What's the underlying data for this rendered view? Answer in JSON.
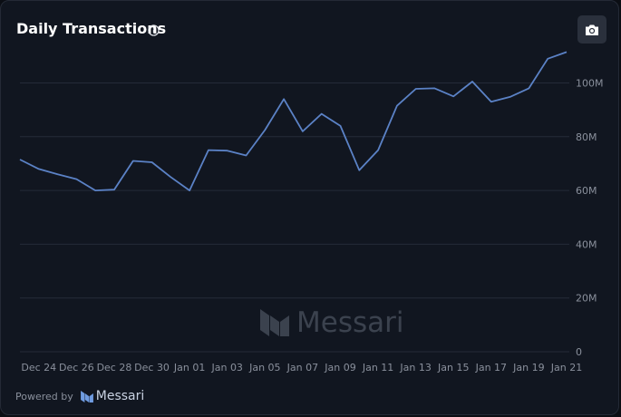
{
  "header": {
    "title": "Daily Transactions",
    "info_icon": "info-circle-icon",
    "camera_icon": "camera-icon"
  },
  "watermark": {
    "text": "Messari"
  },
  "footer": {
    "powered_by": "Powered by",
    "brand": "Messari"
  },
  "colors": {
    "line": "#5b82c6",
    "grid": "#252b38",
    "tick": "#8a909c"
  },
  "chart_data": {
    "type": "line",
    "title": "Daily Transactions",
    "xlabel": "",
    "ylabel": "",
    "x": [
      "Dec 23",
      "Dec 24",
      "Dec 25",
      "Dec 26",
      "Dec 27",
      "Dec 28",
      "Dec 29",
      "Dec 30",
      "Dec 31",
      "Jan 01",
      "Jan 02",
      "Jan 03",
      "Jan 04",
      "Jan 05",
      "Jan 06",
      "Jan 07",
      "Jan 08",
      "Jan 09",
      "Jan 10",
      "Jan 11",
      "Jan 12",
      "Jan 13",
      "Jan 14",
      "Jan 15",
      "Jan 16",
      "Jan 17",
      "Jan 18",
      "Jan 19",
      "Jan 20",
      "Jan 21"
    ],
    "series": [
      {
        "name": "",
        "values": [
          71.5,
          68,
          66,
          64.2,
          60,
          60.3,
          71,
          70.5,
          65,
          60,
          75,
          74.8,
          73,
          82.5,
          94,
          82,
          88.5,
          84,
          67.5,
          75,
          91.5,
          97.8,
          98,
          95,
          100.5,
          93,
          94.8,
          98,
          109,
          111.5
        ]
      }
    ],
    "x_tick_labels": [
      "Dec 24",
      "Dec 26",
      "Dec 28",
      "Dec 30",
      "Jan 01",
      "Jan 03",
      "Jan 05",
      "Jan 07",
      "Jan 09",
      "Jan 11",
      "Jan 13",
      "Jan 15",
      "Jan 17",
      "Jan 19",
      "Jan 21"
    ],
    "y_ticks": [
      0,
      20,
      40,
      60,
      80,
      100
    ],
    "y_tick_labels": [
      "0",
      "20M",
      "40M",
      "60M",
      "80M",
      "100M"
    ],
    "ylim": [
      0,
      115
    ],
    "grid": true,
    "legend": "none"
  }
}
